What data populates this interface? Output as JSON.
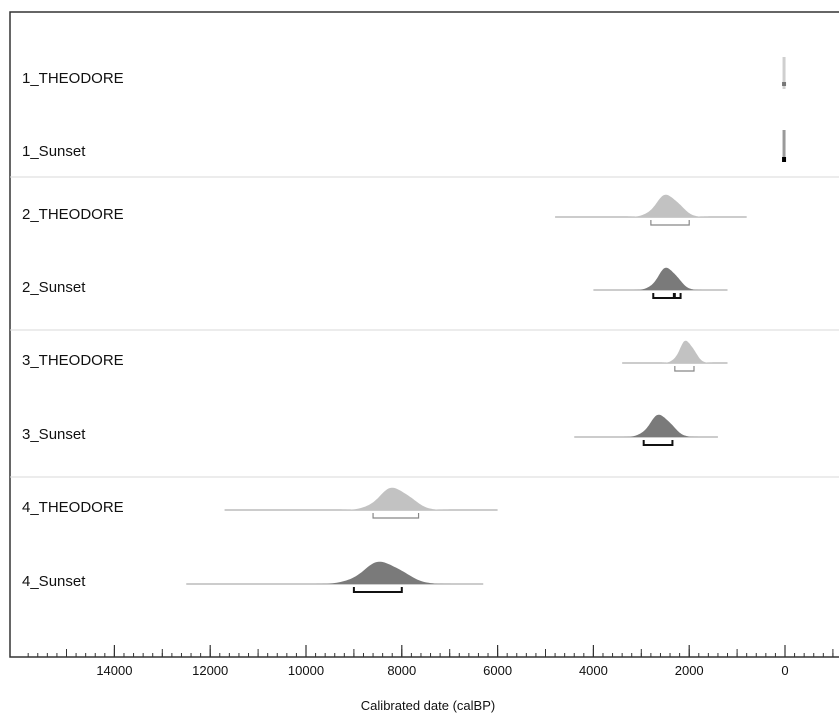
{
  "chart_data": {
    "type": "area",
    "title": "",
    "xlabel": "Calibrated date (calBP)",
    "ylabel": "",
    "xlim": [
      16000,
      -1500
    ],
    "x_reversed": true,
    "xticks": [
      14000,
      12000,
      10000,
      8000,
      6000,
      4000,
      2000,
      0
    ],
    "grid": false,
    "legend": "none",
    "colors": {
      "THEODORE": "#c2c2c2",
      "Sunset": "#7a7a7a",
      "line": "#9a9a9a",
      "separator": "#d8d8d8",
      "axis": "#333333",
      "bracket_light": "#888888",
      "bracket_dark": "#111111"
    },
    "series": [
      {
        "name": "1_THEODORE",
        "group": 1,
        "method": "THEODORE",
        "peak": 20,
        "sd": 8,
        "min": 0,
        "max": 40,
        "hpd": [
          [
            20,
            5
          ]
        ]
      },
      {
        "name": "1_Sunset",
        "group": 1,
        "method": "Sunset",
        "peak": 20,
        "sd": 8,
        "min": 0,
        "max": 40,
        "hpd": [
          [
            20,
            5
          ]
        ]
      },
      {
        "name": "2_THEODORE",
        "group": 2,
        "method": "THEODORE",
        "peak": 2450,
        "sd": 240,
        "min": 800,
        "max": 4800,
        "hpd": [
          [
            2800,
            2000
          ]
        ]
      },
      {
        "name": "2_Sunset",
        "group": 2,
        "method": "Sunset",
        "peak": 2450,
        "sd": 200,
        "min": 1200,
        "max": 4000,
        "hpd": [
          [
            2750,
            2320
          ],
          [
            2300,
            2180
          ]
        ]
      },
      {
        "name": "3_THEODORE",
        "group": 3,
        "method": "THEODORE",
        "peak": 2050,
        "sd": 150,
        "min": 1200,
        "max": 3400,
        "hpd": [
          [
            2300,
            1900
          ]
        ]
      },
      {
        "name": "3_Sunset",
        "group": 3,
        "method": "Sunset",
        "peak": 2600,
        "sd": 220,
        "min": 1400,
        "max": 4400,
        "hpd": [
          [
            2950,
            2350
          ]
        ]
      },
      {
        "name": "4_THEODORE",
        "group": 4,
        "method": "THEODORE",
        "peak": 8150,
        "sd": 320,
        "min": 6000,
        "max": 11700,
        "hpd": [
          [
            8600,
            7650
          ]
        ]
      },
      {
        "name": "4_Sunset",
        "group": 4,
        "method": "Sunset",
        "peak": 8400,
        "sd": 400,
        "min": 6300,
        "max": 12500,
        "hpd": [
          [
            9000,
            8000
          ]
        ]
      }
    ]
  }
}
